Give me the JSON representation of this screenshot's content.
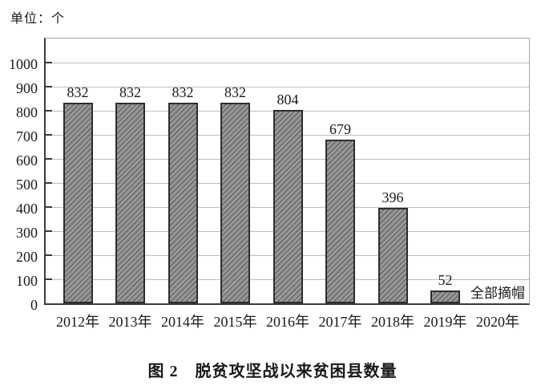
{
  "unit_label": "单位：个",
  "caption": "图 2　脱贫攻坚战以来贫困县数量",
  "chart_data": {
    "type": "bar",
    "title": "图 2 脱贫攻坚战以来贫困县数量",
    "unit_label": "单位：个",
    "categories": [
      "2012年",
      "2013年",
      "2014年",
      "2015年",
      "2016年",
      "2017年",
      "2018年",
      "2019年",
      "2020年"
    ],
    "values": [
      832,
      832,
      832,
      832,
      804,
      679,
      396,
      52,
      null
    ],
    "bar_value_labels": [
      "832",
      "832",
      "832",
      "832",
      "804",
      "679",
      "396",
      "52",
      ""
    ],
    "annotations": [
      {
        "text": "全部摘帽",
        "category": "2020年"
      }
    ],
    "xlabel": "",
    "ylabel": "",
    "ylim": [
      0,
      1110
    ],
    "yticks": [
      0,
      100,
      200,
      300,
      400,
      500,
      600,
      700,
      800,
      900,
      1000
    ],
    "grid": true,
    "legend": false,
    "hatch": "diagonal-forward",
    "colors": {
      "bar_fill": "#9a9a9a",
      "bar_hatch": "#737373",
      "bar_border": "#2d2d2d",
      "gridline": "#bdbdbd",
      "axis": "#3a3a3a",
      "frame": "#a8a8a8",
      "text": "#1a1a1a",
      "background": "#ffffff"
    }
  }
}
